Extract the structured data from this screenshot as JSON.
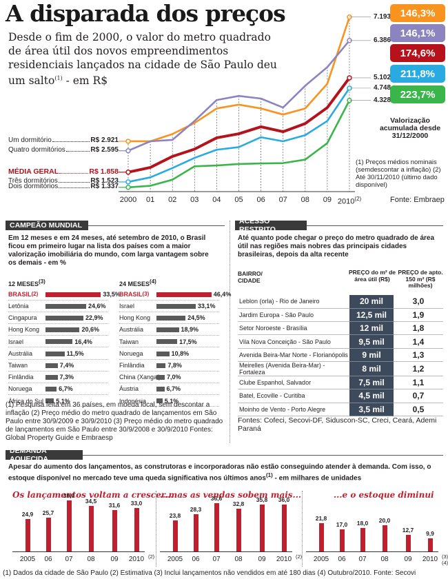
{
  "header": {
    "title": "A disparada dos preços",
    "subtitle": "Desde o fim de 2000, o valor do metro quadrado de área útil dos novos empreendimentos residenciais lançados na cidade de São Paulo deu um salto",
    "subtitle_sup": "(1)",
    "subtitle_end": " - em R$"
  },
  "chart_data": [
    {
      "type": "line",
      "title": "A disparada dos preços",
      "x": [
        "2000",
        "01",
        "02",
        "03",
        "04",
        "05",
        "06",
        "07",
        "08",
        "09",
        "2010"
      ],
      "x_last_sup": "(2)",
      "series": [
        {
          "name": "Um dormitório",
          "start_label": "R$ 2.921",
          "end_label": "7.193",
          "badge": "146,3%",
          "color": "#f7931e",
          "values": [
            2921,
            2921,
            3170,
            3550,
            4050,
            4180,
            4050,
            3840,
            4050,
            4900,
            7193
          ]
        },
        {
          "name": "Quatro dormitórios",
          "start_label": "R$ 2.595",
          "end_label": "6.386",
          "badge": "146,1%",
          "color": "#8b84c0",
          "values": [
            2595,
            2920,
            2970,
            3620,
            4340,
            4480,
            4390,
            4080,
            4830,
            5470,
            6386
          ]
        },
        {
          "name": "MÉDIA GERAL",
          "start_label": "R$ 1.858",
          "end_label": "5.102",
          "badge": "174,6%",
          "color": "#b5121b",
          "values": [
            1858,
            2020,
            2400,
            2650,
            3040,
            3180,
            3420,
            3250,
            3530,
            4080,
            5102
          ]
        },
        {
          "name": "Três dormitórios",
          "start_label": "R$ 1.523",
          "end_label": "4.748",
          "badge": "211,8%",
          "color": "#29abe2",
          "values": [
            1523,
            1680,
            2000,
            2350,
            2630,
            2720,
            3060,
            2920,
            3130,
            3620,
            4748
          ]
        },
        {
          "name": "Dois dormitórios",
          "start_label": "R$ 1.337",
          "end_label": "4.328",
          "badge": "223,7%",
          "color": "#39b54a",
          "values": [
            1337,
            1390,
            1600,
            2060,
            2090,
            2140,
            2160,
            2170,
            2290,
            2860,
            4328
          ]
        }
      ],
      "accum_label": "Valorização acumulada desde 31/12/2000",
      "notes": "(1) Preços médios nominais (semdescontar a inflação) (2) Até 30/11/2010 (último dado disponível)",
      "source": "Fonte: Embraep",
      "ylim": [
        1000,
        7400
      ]
    },
    {
      "type": "bar",
      "title": "12 MESES",
      "title_sup": "(3)",
      "categories": [
        "BRASIL",
        "Letônia",
        "Cingapura",
        "Hong Kong",
        "Israel",
        "Austrália",
        "Taiwan",
        "Finlândia",
        "Noruega",
        "África do Sul"
      ],
      "value_labels": [
        "33,5%",
        "24,6%",
        "22,9%",
        "20,6%",
        "16,4%",
        "11,5%",
        "7,4%",
        "7,3%",
        "6,7%",
        "5,1%"
      ],
      "values": [
        33.5,
        24.6,
        22.9,
        20.6,
        16.4,
        11.5,
        7.4,
        7.3,
        6.7,
        5.1
      ]
    },
    {
      "type": "bar",
      "title": "24 MESES",
      "title_sup": "(4)",
      "categories": [
        "BRASIL",
        "Israel",
        "Hong Kong",
        "Austrália",
        "Taiwan",
        "Noruega",
        "Finlândia",
        "China (Xangai)",
        "Áustria",
        "Indonésia"
      ],
      "value_labels": [
        "46,4%",
        "33,1%",
        "24,5%",
        "18,9%",
        "17,5%",
        "10,8%",
        "7,8%",
        "7,0%",
        "6,7%",
        "5,1%"
      ],
      "values": [
        46.4,
        33.1,
        24.5,
        18.9,
        17.5,
        10.8,
        7.8,
        7.0,
        6.7,
        5.1
      ]
    },
    {
      "type": "bar",
      "title": "Os lançamentos voltam a crescer...",
      "categories": [
        "2005",
        "06",
        "07",
        "08",
        "09",
        "2010"
      ],
      "value_labels": [
        "24,9",
        "25,7",
        "39,0",
        "34,5",
        "31,6",
        "33,0"
      ],
      "values": [
        24.9,
        25.7,
        39.0,
        34.5,
        31.6,
        33.0
      ],
      "last_sup": "(2)"
    },
    {
      "type": "bar",
      "title": "...mas as vendas sobem mais...",
      "categories": [
        "2005",
        "06",
        "07",
        "08",
        "09",
        "2010"
      ],
      "value_labels": [
        "23,8",
        "28,3",
        "36,6",
        "32,8",
        "35,8",
        "36,0"
      ],
      "values": [
        23.8,
        28.3,
        36.6,
        32.8,
        35.8,
        36.0
      ],
      "last_sup": "(2)"
    },
    {
      "type": "bar",
      "title": "...e o estoque diminui",
      "categories": [
        "2005",
        "06",
        "07",
        "08",
        "09",
        "2010"
      ],
      "value_labels": [
        "21,8",
        "17,0",
        "18,0",
        "20,0",
        "12,7",
        "9,9"
      ],
      "values": [
        21.8,
        17.0,
        18.0,
        20.0,
        12.7,
        9.9
      ],
      "last_sup": "(3)(4)"
    }
  ],
  "campeao": {
    "heading": "CAMPEÃO MUNDIAL",
    "intro": "Em 12 meses e em 24 meses, até setembro de 2010, o Brasil ficou em primeiro lugar na lista dos países com a maior valorização imobiliária do mundo, com larga vantagem sobre os demais - em %",
    "footnote": "(1) Pesquisa feita em 36 países, em moeda local, sem descontar a inflação (2) Preço médio do metro quadrado de lançamentos em São Paulo entre 30/9/2009 e 30/9/2010 (3) Preço médio do metro quadrado de lançamentos em São Paulo entre 30/9/2008 e 30/9/2010 Fontes: Global Property Guide e Embraesp",
    "brasil_sup": "(2)",
    "brasil_sup_24": "(3)"
  },
  "acesso": {
    "heading": "ACESSO RESTRITO",
    "intro": "Até quanto pode chegar o preço do metro quadrado de área útil nas regiões mais nobres das principais cidades brasileiras, depois da alta recente",
    "col_bairro": "BAIRRO/ CIDADE",
    "col_preco_m2": "PREÇO do m² de área útil (R$)",
    "col_preco_apto": "PREÇO de apto. 150 m² (R$ milhões)",
    "rows": [
      {
        "nome": "Leblon (orla) - Rio de Janeiro",
        "m2": "20 mil",
        "apto": "3,0"
      },
      {
        "nome": "Jardim Europa - São Paulo",
        "m2": "12,5 mil",
        "apto": "1,9"
      },
      {
        "nome": "Setor Noroeste - Brasília",
        "m2": "12 mil",
        "apto": "1,8"
      },
      {
        "nome": "Vila Nova Conceição - São Paulo",
        "m2": "9,5 mil",
        "apto": "1,4"
      },
      {
        "nome": "Avenida Beira-Mar Norte - Florianópolis",
        "m2": "9 mil",
        "apto": "1,3"
      },
      {
        "nome": "Meirelles (Avenida Beira-Mar) - Fortaleza",
        "m2": "8 mil",
        "apto": "1,2"
      },
      {
        "nome": "Clube Espanhol, Salvador",
        "m2": "7,5 mil",
        "apto": "1,1"
      },
      {
        "nome": "Batel, Ecoville - Curitiba",
        "m2": "4,5 mil",
        "apto": "0,7"
      },
      {
        "nome": "Moinho de Vento - Porto Alegre",
        "m2": "3,5 mil",
        "apto": "0,5"
      }
    ],
    "source": "Fontes: Cofeci, Secovi-DF, Siduscon-SC, Creci, Ceará, Ademi Paraná"
  },
  "demanda": {
    "heading": "DEMANDA AQUECIDA",
    "intro": "Apesar do aumento dos lançamentos, as construtoras e incorporadoras não estão conseguindo atender à demanda. Com isso, o estoque disponível no mercado teve uma queda significativa nos últimos anos",
    "intro_sup": "(1)",
    "intro_end": " - em milhares de unidades",
    "footnote": "(1) Dados da cidade de São Paulo (2) Estimativa (3) Inclui lançamentos não vendidos em até 180 dias (4) Outubro/2010. Fonte: Secovi"
  }
}
